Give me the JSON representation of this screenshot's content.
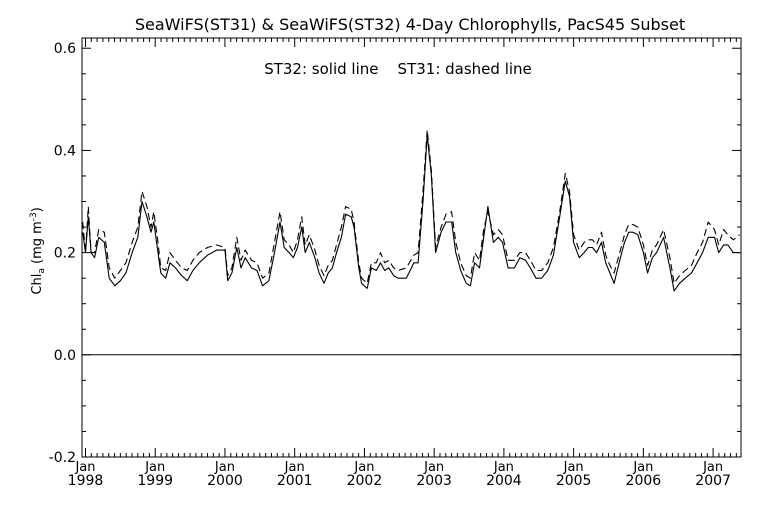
{
  "chart_data": {
    "type": "line",
    "title": "SeaWiFS(ST31) & SeaWiFS(ST32) 4-Day Chlorophylls, PacS45 Subset",
    "annotation": "ST32: solid line    ST31: dashed line",
    "ylabel": {
      "main": "Chl",
      "sub": "a",
      "unit_open": " (mg m",
      "sup": "-3",
      "unit_close": ")"
    },
    "ylim": [
      -0.2,
      0.62
    ],
    "xlim": [
      1997.95,
      2007.4
    ],
    "yticks": [
      {
        "value": -0.2,
        "label": "-0.2"
      },
      {
        "value": 0.0,
        "label": "0.0"
      },
      {
        "value": 0.2,
        "label": "0.2"
      },
      {
        "value": 0.4,
        "label": "0.4"
      },
      {
        "value": 0.6,
        "label": "0.6"
      }
    ],
    "xticks": [
      {
        "value": 1998,
        "month": "Jan",
        "year": "1998"
      },
      {
        "value": 1999,
        "month": "Jan",
        "year": "1999"
      },
      {
        "value": 2000,
        "month": "Jan",
        "year": "2000"
      },
      {
        "value": 2001,
        "month": "Jan",
        "year": "2001"
      },
      {
        "value": 2002,
        "month": "Jan",
        "year": "2002"
      },
      {
        "value": 2003,
        "month": "Jan",
        "year": "2003"
      },
      {
        "value": 2004,
        "month": "Jan",
        "year": "2004"
      },
      {
        "value": 2005,
        "month": "Jan",
        "year": "2005"
      },
      {
        "value": 2006,
        "month": "Jan",
        "year": "2006"
      },
      {
        "value": 2007,
        "month": "Jan",
        "year": "2007"
      }
    ],
    "zero_line": 0.0,
    "series": [
      {
        "name": "ST32",
        "style": "solid",
        "color": "#000000",
        "points": [
          [
            1997.96,
            0.24
          ],
          [
            1998.0,
            0.2
          ],
          [
            1998.04,
            0.27
          ],
          [
            1998.08,
            0.2
          ],
          [
            1998.13,
            0.19
          ],
          [
            1998.19,
            0.23
          ],
          [
            1998.27,
            0.22
          ],
          [
            1998.34,
            0.15
          ],
          [
            1998.42,
            0.135
          ],
          [
            1998.5,
            0.145
          ],
          [
            1998.58,
            0.16
          ],
          [
            1998.67,
            0.2
          ],
          [
            1998.75,
            0.23
          ],
          [
            1998.81,
            0.3
          ],
          [
            1998.88,
            0.27
          ],
          [
            1998.94,
            0.24
          ],
          [
            1998.98,
            0.26
          ],
          [
            1999.04,
            0.2
          ],
          [
            1999.08,
            0.16
          ],
          [
            1999.15,
            0.15
          ],
          [
            1999.21,
            0.18
          ],
          [
            1999.29,
            0.17
          ],
          [
            1999.38,
            0.155
          ],
          [
            1999.46,
            0.145
          ],
          [
            1999.54,
            0.165
          ],
          [
            1999.63,
            0.18
          ],
          [
            1999.75,
            0.195
          ],
          [
            1999.88,
            0.205
          ],
          [
            2000.0,
            0.205
          ],
          [
            2000.04,
            0.145
          ],
          [
            2000.1,
            0.16
          ],
          [
            2000.17,
            0.21
          ],
          [
            2000.23,
            0.17
          ],
          [
            2000.29,
            0.19
          ],
          [
            2000.38,
            0.17
          ],
          [
            2000.46,
            0.165
          ],
          [
            2000.54,
            0.135
          ],
          [
            2000.63,
            0.145
          ],
          [
            2000.71,
            0.2
          ],
          [
            2000.79,
            0.26
          ],
          [
            2000.85,
            0.21
          ],
          [
            2000.92,
            0.2
          ],
          [
            2000.98,
            0.19
          ],
          [
            2001.04,
            0.21
          ],
          [
            2001.1,
            0.25
          ],
          [
            2001.15,
            0.2
          ],
          [
            2001.21,
            0.22
          ],
          [
            2001.29,
            0.19
          ],
          [
            2001.35,
            0.16
          ],
          [
            2001.42,
            0.14
          ],
          [
            2001.48,
            0.16
          ],
          [
            2001.54,
            0.17
          ],
          [
            2001.6,
            0.2
          ],
          [
            2001.67,
            0.23
          ],
          [
            2001.73,
            0.275
          ],
          [
            2001.81,
            0.27
          ],
          [
            2001.85,
            0.25
          ],
          [
            2001.92,
            0.17
          ],
          [
            2001.96,
            0.14
          ],
          [
            2002.04,
            0.13
          ],
          [
            2002.1,
            0.17
          ],
          [
            2002.17,
            0.165
          ],
          [
            2002.23,
            0.18
          ],
          [
            2002.29,
            0.165
          ],
          [
            2002.35,
            0.17
          ],
          [
            2002.42,
            0.155
          ],
          [
            2002.48,
            0.15
          ],
          [
            2002.6,
            0.15
          ],
          [
            2002.71,
            0.18
          ],
          [
            2002.77,
            0.18
          ],
          [
            2002.84,
            0.3
          ],
          [
            2002.9,
            0.43
          ],
          [
            2002.96,
            0.35
          ],
          [
            2003.02,
            0.2
          ],
          [
            2003.1,
            0.24
          ],
          [
            2003.17,
            0.26
          ],
          [
            2003.25,
            0.26
          ],
          [
            2003.31,
            0.2
          ],
          [
            2003.38,
            0.165
          ],
          [
            2003.46,
            0.14
          ],
          [
            2003.52,
            0.135
          ],
          [
            2003.58,
            0.18
          ],
          [
            2003.65,
            0.17
          ],
          [
            2003.71,
            0.23
          ],
          [
            2003.77,
            0.29
          ],
          [
            2003.85,
            0.22
          ],
          [
            2003.92,
            0.23
          ],
          [
            2003.98,
            0.22
          ],
          [
            2004.06,
            0.17
          ],
          [
            2004.15,
            0.17
          ],
          [
            2004.23,
            0.19
          ],
          [
            2004.31,
            0.185
          ],
          [
            2004.38,
            0.17
          ],
          [
            2004.46,
            0.15
          ],
          [
            2004.54,
            0.15
          ],
          [
            2004.63,
            0.165
          ],
          [
            2004.71,
            0.195
          ],
          [
            2004.8,
            0.27
          ],
          [
            2004.88,
            0.34
          ],
          [
            2004.94,
            0.31
          ],
          [
            2005.0,
            0.22
          ],
          [
            2005.08,
            0.19
          ],
          [
            2005.15,
            0.2
          ],
          [
            2005.21,
            0.21
          ],
          [
            2005.27,
            0.21
          ],
          [
            2005.33,
            0.2
          ],
          [
            2005.4,
            0.22
          ],
          [
            2005.46,
            0.18
          ],
          [
            2005.52,
            0.16
          ],
          [
            2005.58,
            0.14
          ],
          [
            2005.67,
            0.19
          ],
          [
            2005.73,
            0.22
          ],
          [
            2005.79,
            0.24
          ],
          [
            2005.85,
            0.24
          ],
          [
            2005.92,
            0.235
          ],
          [
            2006.0,
            0.2
          ],
          [
            2006.06,
            0.16
          ],
          [
            2006.13,
            0.19
          ],
          [
            2006.19,
            0.2
          ],
          [
            2006.29,
            0.23
          ],
          [
            2006.38,
            0.17
          ],
          [
            2006.44,
            0.125
          ],
          [
            2006.52,
            0.14
          ],
          [
            2006.6,
            0.15
          ],
          [
            2006.69,
            0.16
          ],
          [
            2006.77,
            0.18
          ],
          [
            2006.85,
            0.2
          ],
          [
            2006.93,
            0.23
          ],
          [
            2007.02,
            0.23
          ],
          [
            2007.08,
            0.2
          ],
          [
            2007.15,
            0.215
          ],
          [
            2007.21,
            0.215
          ],
          [
            2007.29,
            0.2
          ],
          [
            2007.38,
            0.2
          ]
        ]
      },
      {
        "name": "ST31",
        "style": "dashed",
        "color": "#000000",
        "points": [
          [
            1997.96,
            0.26
          ],
          [
            1998.0,
            0.2
          ],
          [
            1998.04,
            0.29
          ],
          [
            1998.08,
            0.2
          ],
          [
            1998.13,
            0.2
          ],
          [
            1998.19,
            0.245
          ],
          [
            1998.27,
            0.24
          ],
          [
            1998.34,
            0.17
          ],
          [
            1998.42,
            0.15
          ],
          [
            1998.5,
            0.165
          ],
          [
            1998.58,
            0.18
          ],
          [
            1998.67,
            0.22
          ],
          [
            1998.75,
            0.25
          ],
          [
            1998.81,
            0.32
          ],
          [
            1998.88,
            0.29
          ],
          [
            1998.94,
            0.25
          ],
          [
            1998.98,
            0.28
          ],
          [
            1999.04,
            0.22
          ],
          [
            1999.08,
            0.17
          ],
          [
            1999.15,
            0.165
          ],
          [
            1999.21,
            0.2
          ],
          [
            1999.29,
            0.185
          ],
          [
            1999.38,
            0.17
          ],
          [
            1999.46,
            0.165
          ],
          [
            1999.54,
            0.185
          ],
          [
            1999.63,
            0.2
          ],
          [
            1999.75,
            0.21
          ],
          [
            1999.88,
            0.215
          ],
          [
            2000.0,
            0.21
          ],
          [
            2000.04,
            0.155
          ],
          [
            2000.1,
            0.17
          ],
          [
            2000.17,
            0.23
          ],
          [
            2000.23,
            0.185
          ],
          [
            2000.29,
            0.205
          ],
          [
            2000.38,
            0.185
          ],
          [
            2000.46,
            0.18
          ],
          [
            2000.54,
            0.15
          ],
          [
            2000.63,
            0.16
          ],
          [
            2000.71,
            0.22
          ],
          [
            2000.79,
            0.28
          ],
          [
            2000.85,
            0.225
          ],
          [
            2000.92,
            0.215
          ],
          [
            2000.98,
            0.2
          ],
          [
            2001.04,
            0.225
          ],
          [
            2001.1,
            0.27
          ],
          [
            2001.15,
            0.215
          ],
          [
            2001.21,
            0.235
          ],
          [
            2001.29,
            0.205
          ],
          [
            2001.35,
            0.175
          ],
          [
            2001.42,
            0.155
          ],
          [
            2001.48,
            0.175
          ],
          [
            2001.54,
            0.185
          ],
          [
            2001.6,
            0.215
          ],
          [
            2001.67,
            0.25
          ],
          [
            2001.73,
            0.29
          ],
          [
            2001.81,
            0.285
          ],
          [
            2001.85,
            0.26
          ],
          [
            2001.92,
            0.18
          ],
          [
            2001.96,
            0.15
          ],
          [
            2002.04,
            0.14
          ],
          [
            2002.1,
            0.18
          ],
          [
            2002.17,
            0.18
          ],
          [
            2002.23,
            0.2
          ],
          [
            2002.29,
            0.18
          ],
          [
            2002.35,
            0.185
          ],
          [
            2002.42,
            0.17
          ],
          [
            2002.48,
            0.165
          ],
          [
            2002.6,
            0.17
          ],
          [
            2002.71,
            0.195
          ],
          [
            2002.77,
            0.2
          ],
          [
            2002.84,
            0.32
          ],
          [
            2002.9,
            0.44
          ],
          [
            2002.96,
            0.36
          ],
          [
            2003.02,
            0.21
          ],
          [
            2003.1,
            0.25
          ],
          [
            2003.17,
            0.275
          ],
          [
            2003.25,
            0.28
          ],
          [
            2003.31,
            0.22
          ],
          [
            2003.38,
            0.18
          ],
          [
            2003.46,
            0.155
          ],
          [
            2003.52,
            0.15
          ],
          [
            2003.58,
            0.2
          ],
          [
            2003.65,
            0.185
          ],
          [
            2003.71,
            0.245
          ],
          [
            2003.77,
            0.28
          ],
          [
            2003.85,
            0.235
          ],
          [
            2003.92,
            0.245
          ],
          [
            2003.98,
            0.235
          ],
          [
            2004.06,
            0.185
          ],
          [
            2004.15,
            0.185
          ],
          [
            2004.23,
            0.2
          ],
          [
            2004.31,
            0.2
          ],
          [
            2004.38,
            0.185
          ],
          [
            2004.46,
            0.165
          ],
          [
            2004.54,
            0.165
          ],
          [
            2004.63,
            0.18
          ],
          [
            2004.71,
            0.21
          ],
          [
            2004.8,
            0.28
          ],
          [
            2004.88,
            0.355
          ],
          [
            2004.94,
            0.32
          ],
          [
            2005.0,
            0.235
          ],
          [
            2005.08,
            0.205
          ],
          [
            2005.15,
            0.22
          ],
          [
            2005.21,
            0.225
          ],
          [
            2005.27,
            0.225
          ],
          [
            2005.33,
            0.215
          ],
          [
            2005.4,
            0.24
          ],
          [
            2005.46,
            0.195
          ],
          [
            2005.52,
            0.175
          ],
          [
            2005.58,
            0.16
          ],
          [
            2005.67,
            0.205
          ],
          [
            2005.73,
            0.235
          ],
          [
            2005.79,
            0.255
          ],
          [
            2005.85,
            0.255
          ],
          [
            2005.92,
            0.25
          ],
          [
            2006.0,
            0.215
          ],
          [
            2006.06,
            0.175
          ],
          [
            2006.13,
            0.205
          ],
          [
            2006.19,
            0.215
          ],
          [
            2006.29,
            0.245
          ],
          [
            2006.38,
            0.19
          ],
          [
            2006.44,
            0.14
          ],
          [
            2006.52,
            0.155
          ],
          [
            2006.6,
            0.165
          ],
          [
            2006.69,
            0.175
          ],
          [
            2006.77,
            0.2
          ],
          [
            2006.85,
            0.22
          ],
          [
            2006.93,
            0.26
          ],
          [
            2007.02,
            0.245
          ],
          [
            2007.08,
            0.215
          ],
          [
            2007.15,
            0.245
          ],
          [
            2007.21,
            0.235
          ],
          [
            2007.29,
            0.225
          ],
          [
            2007.38,
            0.235
          ]
        ]
      }
    ]
  }
}
